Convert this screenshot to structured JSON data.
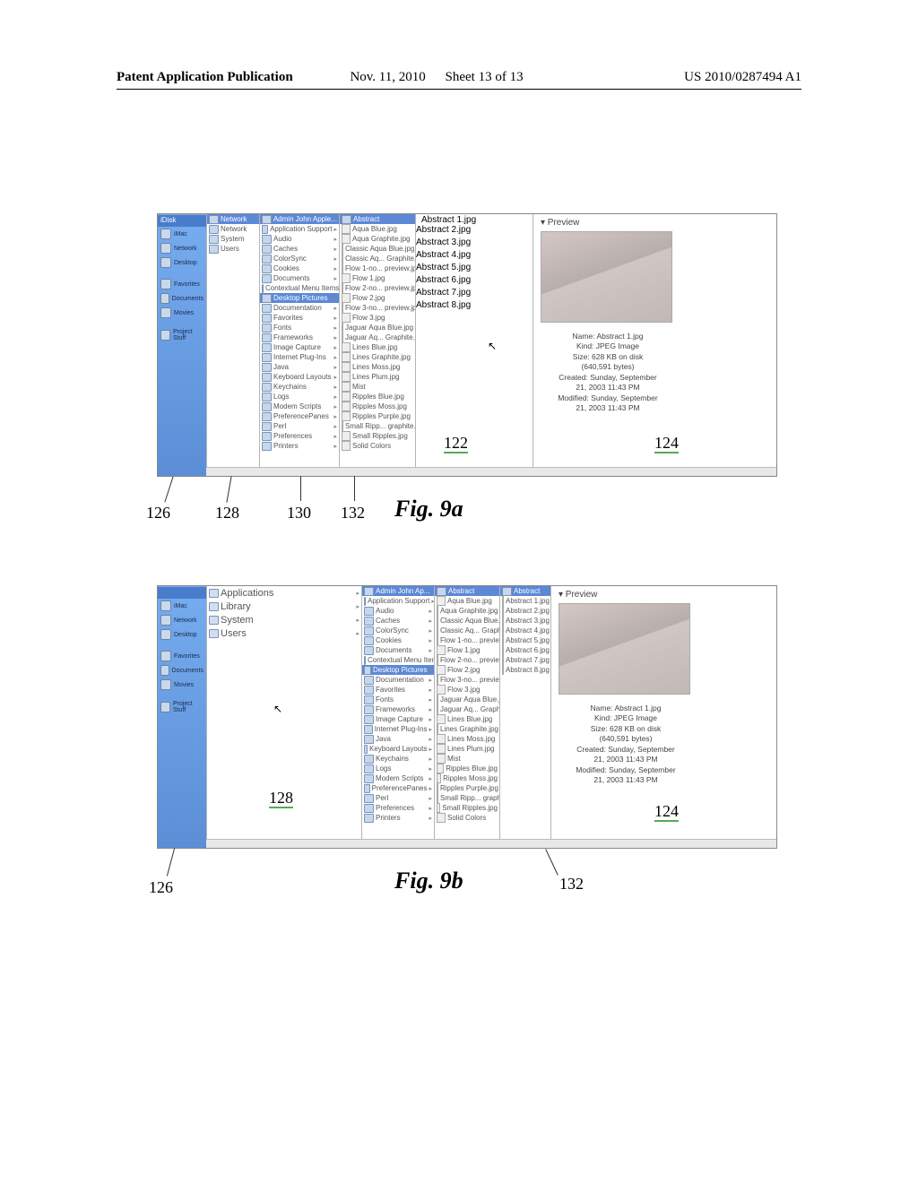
{
  "header": {
    "publication": "Patent Application Publication",
    "date": "Nov. 11, 2010",
    "sheet": "Sheet 13 of 13",
    "pubnum": "US 2010/0287494 A1"
  },
  "fig9a": {
    "captions": {
      "fig": "Fig.  9a",
      "a126": "126",
      "a128": "128",
      "a130": "130",
      "a132": "132",
      "a122": "122",
      "a124": "124"
    },
    "sidebar_title": "iDisk",
    "sidebar_items": [
      "iMac",
      "Network",
      "Desktop",
      "—",
      "Favorites",
      "Documents",
      "Movies",
      "—",
      "Project Stuff"
    ],
    "col1_title": "Network",
    "col1_items": [
      "Network",
      "System",
      "Users"
    ],
    "col2_title": "Admin John Apple...",
    "col2_items": [
      "Application Support",
      "Audio",
      "Caches",
      "ColorSync",
      "Cookies",
      "Documents",
      "Contextual Menu Items",
      "Desktop Pictures",
      "Documentation",
      "Favorites",
      "Fonts",
      "Frameworks",
      "Image Capture",
      "Internet Plug-Ins",
      "Java",
      "Keyboard Layouts",
      "Keychains",
      "Logs",
      "Modem Scripts",
      "PreferencePanes",
      "Perl",
      "Preferences",
      "Printers"
    ],
    "col2_selected": 7,
    "col3_title": "Abstract",
    "col3_items": [
      "Aqua Blue.jpg",
      "Aqua Graphite.jpg",
      "Classic Aqua Blue.jpg",
      "Classic Aq... Graphite.jpg",
      "Flow 1-no... preview.jpg",
      "Flow 1.jpg",
      "Flow 2-no... preview.jpg",
      "Flow 2.jpg",
      "Flow 3-no... preview.jpg",
      "Flow 3.jpg",
      "Jaguar Aqua Blue.jpg",
      "Jaguar Aq... Graphite.jpg",
      "Lines Blue.jpg",
      "Lines Graphite.jpg",
      "Lines Moss.jpg",
      "Lines Plum.jpg",
      "Mist",
      "Ripples Blue.jpg",
      "Ripples Moss.jpg",
      "Ripples Purple.jpg",
      "Small Ripp... graphite.jpg",
      "Small Ripples.jpg",
      "Solid Colors"
    ],
    "col4_title": "Abstract 1.jpg",
    "col4_items": [
      "Abstract 2.jpg",
      "Abstract 3.jpg",
      "Abstract 4.jpg",
      "Abstract 5.jpg",
      "Abstract 6.jpg",
      "Abstract 7.jpg",
      "Abstract 8.jpg"
    ],
    "preview_title": "▾  Preview",
    "meta": {
      "name": "Name: Abstract 1.jpg",
      "kind": "Kind: JPEG Image",
      "size": "Size: 628 KB on disk",
      "bytes": "(640,591 bytes)",
      "created_a": "Created: Sunday, September",
      "created_b": "21, 2003 11:43 PM",
      "modified_a": "Modified: Sunday, September",
      "modified_b": "21, 2003 11:43 PM"
    }
  },
  "fig9b": {
    "captions": {
      "fig": "Fig.  9b",
      "a126": "126",
      "a128": "128",
      "a132": "132",
      "a124": "124"
    },
    "sidebar_items": [
      "iMac",
      "Network",
      "Desktop",
      "—",
      "Favorites",
      "Documents",
      "Movies",
      "—",
      "Project Stuff"
    ],
    "col1_items": [
      "Applications",
      "Library",
      "System",
      "Users"
    ],
    "col2_title": "Admin John Ap...",
    "col2_items": [
      "Application Support",
      "Audio",
      "Caches",
      "ColorSync",
      "Cookies",
      "Documents",
      "Contextual Menu Items",
      "Desktop Pictures",
      "Documentation",
      "Favorites",
      "Fonts",
      "Frameworks",
      "Image Capture",
      "Internet Plug-Ins",
      "Java",
      "Keyboard Layouts",
      "Keychains",
      "Logs",
      "Modem Scripts",
      "PreferencePanes",
      "Perl",
      "Preferences",
      "Printers"
    ],
    "col2_selected": 7,
    "col3_title": "Abstract",
    "col3_items": [
      "Aqua Blue.jpg",
      "Aqua Graphite.jpg",
      "Classic Aqua Blue.jpg",
      "Classic Aq... Graphite.jpg",
      "Flow 1-no... preview.jpg",
      "Flow 1.jpg",
      "Flow 2-no... preview.jpg",
      "Flow 2.jpg",
      "Flow 3-no... preview.jpg",
      "Flow 3.jpg",
      "Jaguar Aqua Blue.jpg",
      "Jaguar Aq... Graphite.jpg",
      "Lines Blue.jpg",
      "Lines Graphite.jpg",
      "Lines Moss.jpg",
      "Lines Plum.jpg",
      "Mist",
      "Ripples Blue.jpg",
      "Ripples Moss.jpg",
      "Ripples Purple.jpg",
      "Small Ripp... graphite.jpg",
      "Small Ripples.jpg",
      "Solid Colors"
    ],
    "col4_title": "Abstract",
    "col4_items": [
      "Abstract 1.jpg",
      "Abstract 2.jpg",
      "Abstract 3.jpg",
      "Abstract 4.jpg",
      "Abstract 5.jpg",
      "Abstract 6.jpg",
      "Abstract 7.jpg",
      "Abstract 8.jpg"
    ],
    "preview_title": "▾  Preview",
    "meta": {
      "name": "Name: Abstract 1.jpg",
      "kind": "Kind: JPEG Image",
      "size": "Size: 628 KB on disk",
      "bytes": "(640,591 bytes)",
      "created_a": "Created: Sunday, September",
      "created_b": "21, 2003 11:43 PM",
      "modified_a": "Modified: Sunday, September",
      "modified_b": "21, 2003 11:43 PM"
    }
  },
  "columns_style": {
    "sidebar_bg_top": "#76acf0",
    "sidebar_bg_bottom": "#5b8ed6",
    "selected_row_bg": "#5c88d6",
    "preview_img_gradient": [
      "#d3c8c5",
      "#b8aeab",
      "#cfc7c4",
      "#c2b8b5"
    ],
    "col_border": "#b5b5b5"
  }
}
